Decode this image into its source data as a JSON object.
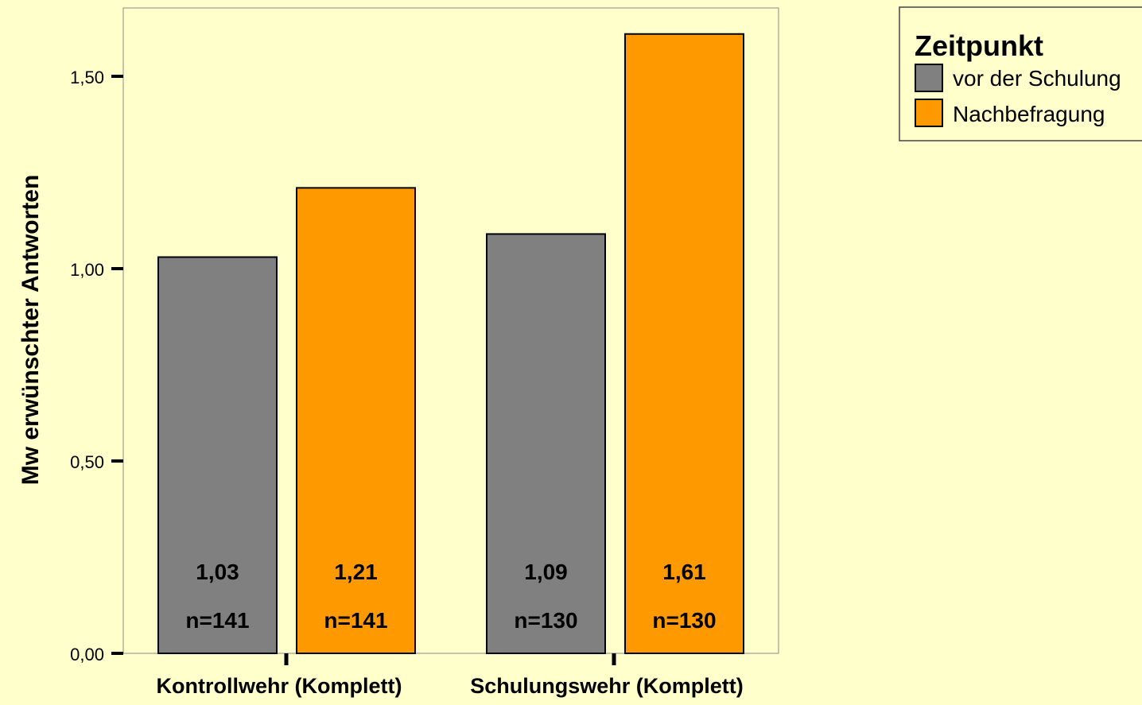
{
  "chart_data": {
    "type": "bar",
    "ylabel": "Mw erwünschter Antworten",
    "xlabel": "",
    "ylim": [
      0,
      1.65
    ],
    "yticks": [
      0,
      0.5,
      1.0,
      1.5
    ],
    "ytick_labels": [
      "0,00",
      "0,50",
      "1,00",
      "1,50"
    ],
    "categories": [
      "Kontrollwehr (Komplett)",
      "Schulungswehr (Komplett)"
    ],
    "series": [
      {
        "name": "vor der Schulung",
        "color": "#808080",
        "values": [
          1.03,
          1.09
        ],
        "value_labels": [
          "1,03",
          "1,09"
        ],
        "n_labels": [
          "n=141",
          "n=130"
        ]
      },
      {
        "name": "Nachbefragung",
        "color": "#FF9900",
        "values": [
          1.21,
          1.61
        ],
        "value_labels": [
          "1,21",
          "1,61"
        ],
        "n_labels": [
          "n=141",
          "n=130"
        ]
      }
    ],
    "legend": {
      "title": "Zeitpunkt",
      "position": "top-right"
    },
    "grid": false,
    "background_color": "#FFFFCC"
  }
}
